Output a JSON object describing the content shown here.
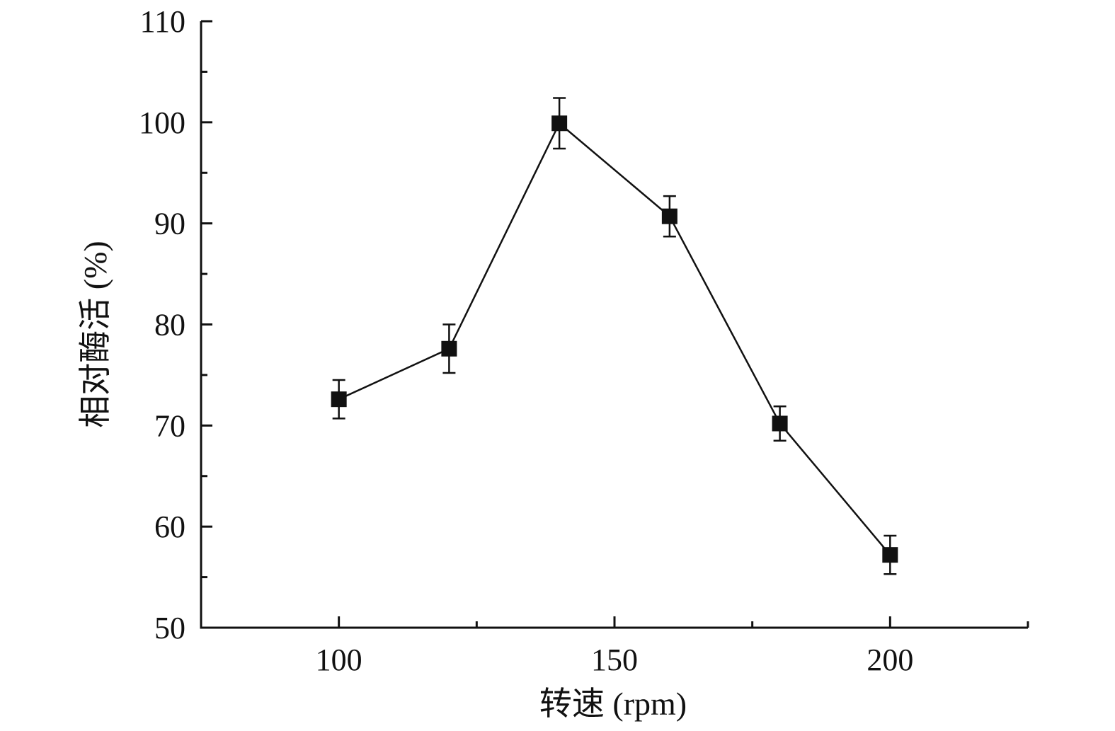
{
  "chart_data": {
    "type": "line",
    "xlabel": "转速 (rpm)",
    "ylabel": "相对酶活 (%)",
    "xlim": [
      75,
      225
    ],
    "ylim": [
      50,
      110
    ],
    "x_ticks": [
      100,
      150,
      200
    ],
    "x_minor_ticks": [
      125,
      175,
      225
    ],
    "y_ticks": [
      50,
      60,
      70,
      80,
      90,
      100,
      110
    ],
    "y_minor_ticks": [
      55,
      65,
      75,
      85,
      95,
      105
    ],
    "grid": false,
    "marker": "square",
    "color": "#111111",
    "series": [
      {
        "x": [
          100,
          120,
          140,
          160,
          180,
          200
        ],
        "y": [
          72.6,
          77.6,
          99.9,
          90.7,
          70.2,
          57.2
        ],
        "error": [
          1.9,
          2.4,
          2.5,
          2.0,
          1.7,
          1.9
        ]
      }
    ]
  }
}
